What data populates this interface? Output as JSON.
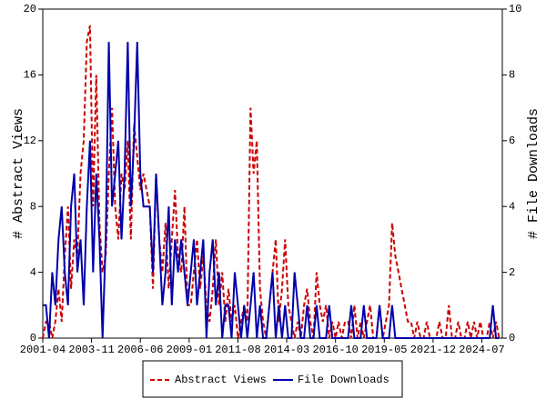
{
  "chart_data": {
    "type": "line",
    "y_label": "# Abstract Views",
    "y2_label": "# File Downloads",
    "xlim": [
      "2001-04",
      "2025-08"
    ],
    "xticks": [
      "2001-04",
      "2003-11",
      "2006-06",
      "2009-01",
      "2011-08",
      "2014-03",
      "2016-10",
      "2019-05",
      "2021-12",
      "2024-07"
    ],
    "ylim": [
      0,
      20
    ],
    "yticks": [
      0,
      4,
      8,
      12,
      16,
      20
    ],
    "y2lim": [
      0,
      10
    ],
    "y2ticks": [
      0,
      2,
      4,
      6,
      8,
      10
    ],
    "legend": "bottom",
    "x": [
      "2001-04",
      "2001-06",
      "2001-08",
      "2001-10",
      "2001-12",
      "2002-02",
      "2002-04",
      "2002-06",
      "2002-08",
      "2002-10",
      "2002-12",
      "2003-02",
      "2003-04",
      "2003-06",
      "2003-08",
      "2003-10",
      "2003-12",
      "2004-02",
      "2004-04",
      "2004-06",
      "2004-08",
      "2004-10",
      "2004-12",
      "2005-02",
      "2005-04",
      "2005-06",
      "2005-08",
      "2005-10",
      "2005-12",
      "2006-02",
      "2006-04",
      "2006-06",
      "2006-08",
      "2006-10",
      "2006-12",
      "2007-02",
      "2007-04",
      "2007-06",
      "2007-08",
      "2007-10",
      "2007-12",
      "2008-02",
      "2008-04",
      "2008-06",
      "2008-08",
      "2008-10",
      "2008-12",
      "2009-02",
      "2009-04",
      "2009-06",
      "2009-08",
      "2009-10",
      "2009-12",
      "2010-02",
      "2010-04",
      "2010-06",
      "2010-08",
      "2010-10",
      "2010-12",
      "2011-02",
      "2011-04",
      "2011-06",
      "2011-08",
      "2011-10",
      "2011-12",
      "2012-02",
      "2012-04",
      "2012-06",
      "2012-08",
      "2012-10",
      "2012-12",
      "2013-02",
      "2013-04",
      "2013-06",
      "2013-08",
      "2013-10",
      "2013-12",
      "2014-02",
      "2014-04",
      "2014-06",
      "2014-08",
      "2014-10",
      "2014-12",
      "2015-02",
      "2015-04",
      "2015-06",
      "2015-08",
      "2015-10",
      "2015-12",
      "2016-02",
      "2016-04",
      "2016-06",
      "2016-08",
      "2016-10",
      "2016-12",
      "2017-02",
      "2017-04",
      "2017-06",
      "2017-08",
      "2017-10",
      "2017-12",
      "2018-02",
      "2018-04",
      "2018-06",
      "2018-08",
      "2018-10",
      "2018-12",
      "2019-02",
      "2019-04",
      "2019-06",
      "2019-08",
      "2019-10",
      "2019-12",
      "2020-02",
      "2020-04",
      "2020-06",
      "2020-08",
      "2020-10",
      "2020-12",
      "2021-02",
      "2021-04",
      "2021-06",
      "2021-08",
      "2021-10",
      "2021-12",
      "2022-02",
      "2022-04",
      "2022-06",
      "2022-08",
      "2022-10",
      "2022-12",
      "2023-02",
      "2023-04",
      "2023-06",
      "2023-08",
      "2023-10",
      "2023-12",
      "2024-02",
      "2024-04",
      "2024-06",
      "2024-08",
      "2024-10",
      "2024-12",
      "2025-02",
      "2025-04",
      "2025-06"
    ],
    "series": [
      {
        "name": "Abstract Views",
        "color": "#cc0000",
        "dash": true,
        "axis": "y",
        "values": [
          0,
          1,
          1,
          0,
          1,
          3,
          1,
          5,
          8,
          3,
          6,
          5,
          10,
          12,
          18,
          19,
          8,
          16,
          7,
          4,
          5,
          10,
          14,
          8,
          6,
          10,
          9,
          12,
          6,
          13,
          11,
          9,
          10,
          9,
          8,
          3,
          10,
          6,
          4,
          7,
          3,
          6,
          9,
          5,
          4,
          8,
          2,
          2,
          4,
          6,
          3,
          5,
          2,
          1,
          3,
          6,
          2,
          4,
          1,
          3,
          1,
          2,
          0,
          1,
          2,
          1,
          14,
          10,
          12,
          3,
          1,
          0,
          2,
          4,
          6,
          1,
          3,
          6,
          2,
          1,
          0,
          1,
          0,
          2,
          3,
          1,
          0,
          4,
          2,
          1,
          2,
          0,
          1,
          0,
          1,
          0,
          1,
          1,
          0,
          2,
          0,
          1,
          0,
          1,
          2,
          0,
          0,
          2,
          0,
          1,
          2,
          7,
          5,
          4,
          3,
          2,
          1,
          1,
          0,
          1,
          0,
          0,
          1,
          0,
          0,
          0,
          1,
          0,
          0,
          2,
          0,
          0,
          1,
          0,
          0,
          1,
          0,
          1,
          0,
          1,
          0,
          0,
          1,
          0,
          1,
          0
        ]
      },
      {
        "name": "File Downloads",
        "color": "#0000aa",
        "dash": false,
        "axis": "y2",
        "values": [
          1,
          1,
          0,
          2,
          1,
          3,
          4,
          2,
          1,
          4,
          5,
          2,
          3,
          1,
          4,
          6,
          2,
          5,
          3,
          0,
          3,
          9,
          4,
          5,
          6,
          3,
          5,
          9,
          4,
          6,
          9,
          5,
          4,
          4,
          4,
          2,
          5,
          3,
          1,
          2,
          4,
          1,
          3,
          2,
          3,
          2,
          1,
          2,
          3,
          1,
          2,
          3,
          0,
          2,
          3,
          1,
          2,
          0,
          1,
          1,
          0,
          2,
          1,
          0,
          1,
          0,
          1,
          2,
          0,
          1,
          0,
          0,
          1,
          2,
          0,
          1,
          0,
          1,
          0,
          0,
          2,
          1,
          0,
          0,
          1,
          0,
          0,
          1,
          0,
          0,
          0,
          1,
          0,
          0,
          0,
          0,
          0,
          0,
          1,
          0,
          0,
          0,
          1,
          0,
          0,
          0,
          0,
          1,
          0,
          0,
          0,
          1,
          0,
          0,
          0,
          0,
          0,
          0,
          0,
          0,
          0,
          0,
          0,
          0,
          0,
          0,
          0,
          0,
          0,
          0,
          0,
          0,
          0,
          0,
          0,
          0,
          0,
          0,
          0,
          0,
          0,
          0,
          0,
          1,
          0,
          0
        ]
      }
    ]
  }
}
